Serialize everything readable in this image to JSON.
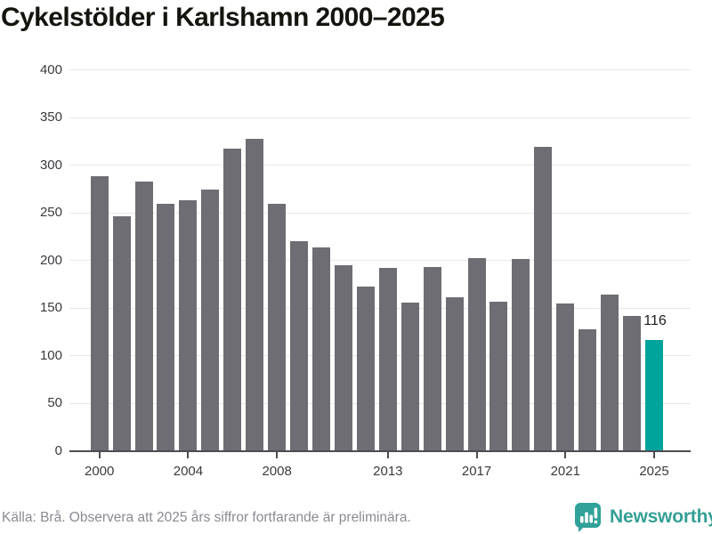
{
  "chart_data": {
    "type": "bar",
    "title": "Cykelstölder i Karlshamn 2000–2025",
    "categories": [
      "2000",
      "2001",
      "2002",
      "2003",
      "2004",
      "2005",
      "2006",
      "2007",
      "2008",
      "2009",
      "2010",
      "2011",
      "2012",
      "2013",
      "2014",
      "2015",
      "2016",
      "2017",
      "2018",
      "2019",
      "2020",
      "2021",
      "2022",
      "2023",
      "2024",
      "2025"
    ],
    "values": [
      288,
      246,
      283,
      259,
      263,
      274,
      317,
      328,
      259,
      220,
      214,
      195,
      172,
      192,
      156,
      193,
      161,
      202,
      157,
      201,
      319,
      155,
      128,
      164,
      142,
      116
    ],
    "ylim": [
      0,
      400
    ],
    "yticks": [
      0,
      50,
      100,
      150,
      200,
      250,
      300,
      350,
      400
    ],
    "xtick_labels": [
      "2000",
      "2004",
      "2008",
      "2013",
      "2017",
      "2021",
      "2025"
    ],
    "xtick_indices": [
      0,
      4,
      8,
      13,
      17,
      21,
      25
    ],
    "grid": true,
    "legend": "none",
    "bar_color": "#6e6d73",
    "highlight_color": "#00a49c",
    "highlight_category": "2025",
    "highlight_value_label": "116"
  },
  "footer": {
    "source": "Källa: Brå. Observera att 2025 års siffror fortfarande är preliminära.",
    "brand": "Newsworthy",
    "brand_color": "#35a095"
  }
}
